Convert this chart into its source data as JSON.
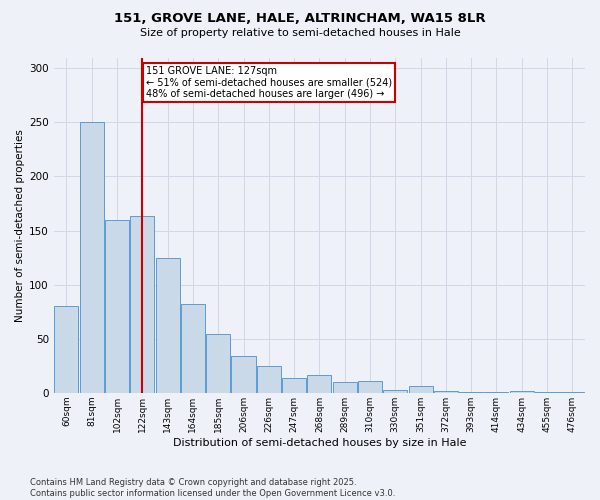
{
  "title_line1": "151, GROVE LANE, HALE, ALTRINCHAM, WA15 8LR",
  "title_line2": "Size of property relative to semi-detached houses in Hale",
  "xlabel": "Distribution of semi-detached houses by size in Hale",
  "ylabel": "Number of semi-detached properties",
  "categories": [
    "60sqm",
    "81sqm",
    "102sqm",
    "122sqm",
    "143sqm",
    "164sqm",
    "185sqm",
    "206sqm",
    "226sqm",
    "247sqm",
    "268sqm",
    "289sqm",
    "310sqm",
    "330sqm",
    "351sqm",
    "372sqm",
    "393sqm",
    "414sqm",
    "434sqm",
    "455sqm",
    "476sqm"
  ],
  "values": [
    80,
    250,
    160,
    163,
    125,
    82,
    54,
    34,
    25,
    14,
    16,
    10,
    11,
    3,
    6,
    2,
    1,
    1,
    2,
    1,
    1
  ],
  "bar_color": "#c9d9e8",
  "bar_edge_color": "#5b9bd5",
  "ref_line_label": "151 GROVE LANE: 127sqm",
  "annotation_smaller": "← 51% of semi-detached houses are smaller (524)",
  "annotation_larger": "48% of semi-detached houses are larger (496) →",
  "annotation_box_color": "#ffffff",
  "annotation_box_edge": "#cc0000",
  "ref_line_color": "#cc0000",
  "ylim": [
    0,
    310
  ],
  "yticks": [
    0,
    50,
    100,
    150,
    200,
    250,
    300
  ],
  "grid_color": "#d0d8e8",
  "background_color": "#eef2f8",
  "footer_line1": "Contains HM Land Registry data © Crown copyright and database right 2025.",
  "footer_line2": "Contains public sector information licensed under the Open Government Licence v3.0."
}
